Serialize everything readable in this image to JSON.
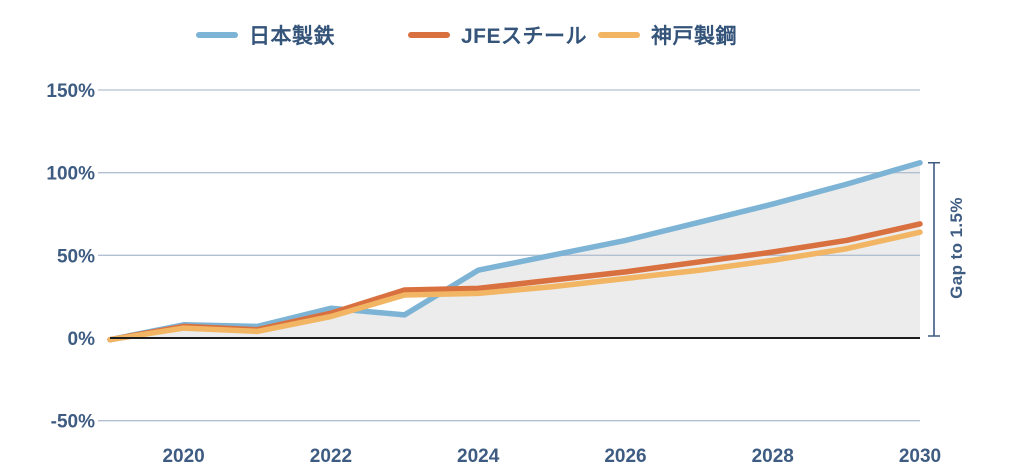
{
  "legend": {
    "items": [
      {
        "label": "日本製鉄",
        "color": "#7db4d5"
      },
      {
        "label": "JFEスチール",
        "color": "#d9703f"
      },
      {
        "label": "神戸製鋼",
        "color": "#f1b563"
      }
    ]
  },
  "annotations": {
    "gap_label": "Gap to 1.5%"
  },
  "chart_data": {
    "type": "line",
    "title": "",
    "xlabel": "",
    "ylabel": "",
    "x": [
      2019,
      2020,
      2021,
      2022,
      2023,
      2024,
      2025,
      2026,
      2027,
      2028,
      2029,
      2030
    ],
    "series": [
      {
        "name": "日本製鉄",
        "color": "#7db4d5",
        "area_fill": true,
        "values": [
          -1,
          8,
          7,
          18,
          14,
          41,
          50,
          59,
          70,
          81,
          93,
          106
        ]
      },
      {
        "name": "JFEスチール",
        "color": "#d9703f",
        "area_fill": false,
        "values": [
          -1,
          7,
          5,
          15,
          29,
          30,
          35,
          40,
          46,
          52,
          59,
          69
        ]
      },
      {
        "name": "神戸製鋼",
        "color": "#f1b563",
        "area_fill": false,
        "values": [
          -1,
          6,
          4,
          13,
          26,
          27,
          31,
          36,
          41,
          47,
          54,
          64
        ]
      }
    ],
    "yticks": [
      {
        "value": 150,
        "label": "150%"
      },
      {
        "value": 100,
        "label": "100%"
      },
      {
        "value": 50,
        "label": "50%"
      },
      {
        "value": 0,
        "label": "0%"
      },
      {
        "value": -50,
        "label": "-50%"
      }
    ],
    "xticks": [
      {
        "year": 2020,
        "label": "2020"
      },
      {
        "year": 2022,
        "label": "2022"
      },
      {
        "year": 2024,
        "label": "2024"
      },
      {
        "year": 2026,
        "label": "2026"
      },
      {
        "year": 2028,
        "label": "2028"
      },
      {
        "year": 2030,
        "label": "2030"
      }
    ],
    "ylim": [
      -50,
      150
    ],
    "grid": true,
    "legend_position": "top",
    "annotation": {
      "label": "Gap to 1.5%",
      "from": 0,
      "to": 106
    },
    "colors": {
      "tick_text": "#3e5c82",
      "gridline": "#b3c0d1",
      "zero_line": "#1c1c1c",
      "area_fill": "#ececec",
      "bracket": "#3e5c82"
    }
  }
}
